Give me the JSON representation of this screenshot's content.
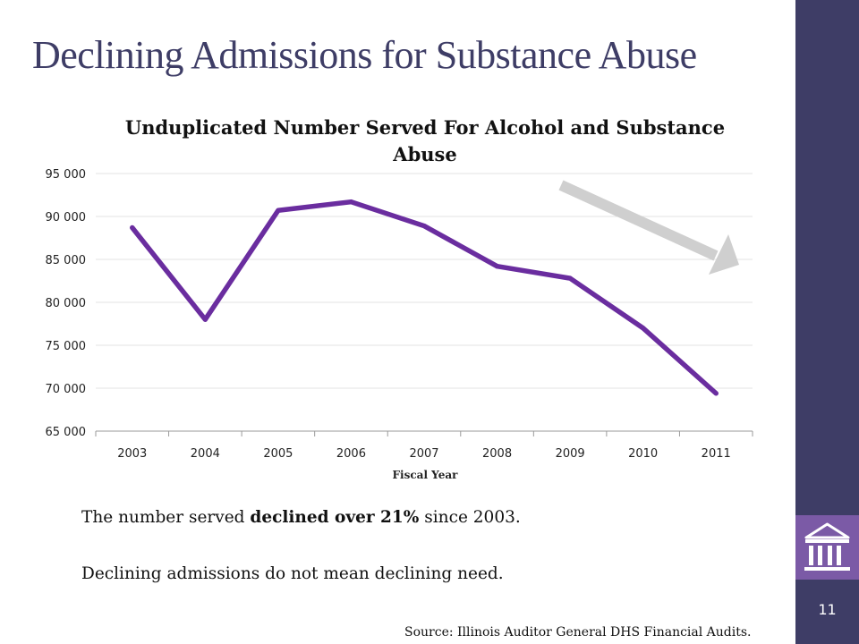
{
  "slide": {
    "title": "Declining Admissions for Substance Abuse",
    "page_number": "11",
    "source": "Source: Illinois Auditor General DHS Financial Audits.",
    "accent_colors": {
      "sidebar": "#3e3d66",
      "logo_box": "#7b5aa6",
      "line": "#6a2d9f",
      "trend_arrow": "#cfcfcf"
    },
    "logo_icon": "building-columns-icon"
  },
  "body": {
    "line1_pre": "The number served ",
    "line1_bold": "declined over 21%",
    "line1_post": " since 2003.",
    "line2": "Declining admissions do not mean declining need."
  },
  "chart_data": {
    "type": "line",
    "title": "Unduplicated Number Served For Alcohol and Substance Abuse",
    "xlabel": "Fiscal Year",
    "ylabel": "",
    "categories": [
      "2003",
      "2004",
      "2005",
      "2006",
      "2007",
      "2008",
      "2009",
      "2010",
      "2011"
    ],
    "series": [
      {
        "values": [
          88700,
          78000,
          90700,
          91700,
          88900,
          84200,
          82800,
          77000,
          69400
        ]
      }
    ],
    "ylim": [
      65000,
      95000
    ],
    "yticks": [
      95000,
      90000,
      85000,
      80000,
      75000,
      70000,
      65000
    ],
    "ytick_labels": [
      "95 000",
      "90 000",
      "85 000",
      "80 000",
      "75 000",
      "70 000",
      "65 000"
    ],
    "grid": true,
    "legend": "none",
    "annotation": "downward-trend-arrow"
  }
}
